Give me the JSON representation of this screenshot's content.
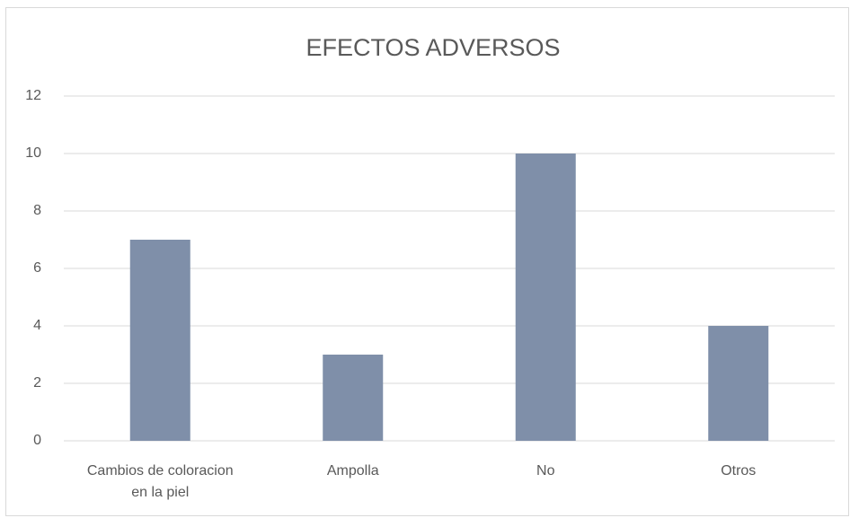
{
  "chart_data": {
    "type": "bar",
    "title": "EFECTOS ADVERSOS",
    "categories": [
      "Cambios de coloracion en la piel",
      "Ampolla",
      "No",
      "Otros"
    ],
    "values": [
      7,
      3,
      10,
      4
    ],
    "color": "#7f8fa9",
    "ylim": [
      0,
      12
    ],
    "yticks": [
      0,
      2,
      4,
      6,
      8,
      10,
      12
    ],
    "grid": true
  }
}
